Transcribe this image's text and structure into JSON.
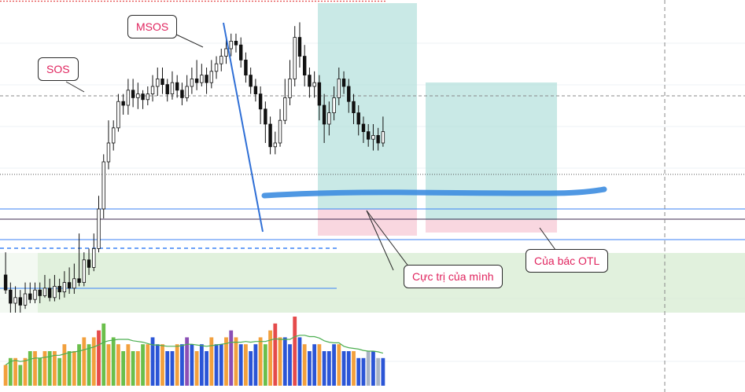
{
  "colors": {
    "bull": "#000000",
    "bear": "#000000",
    "target_zone": "#b2dfdb",
    "stop_zone": "#f8cdd8",
    "demand_zone": "#d7ecd2",
    "annotation_text": "#e0245e",
    "support_line": "#3b82f6",
    "vol_orange": "#f2a03d",
    "vol_green": "#6abf4b",
    "vol_blue": "#2b55d6",
    "vol_red": "#e54b4b",
    "vol_purple": "#8b4fb5",
    "vol_grey": "#a9b4c4",
    "vol_ma": "#4caf50",
    "hand_line": "#3d8de0"
  },
  "annotations": {
    "sos": "SOS",
    "msos": "MSOS",
    "cuc_tri": "Cực trị của mình",
    "cua_bac": "Của bác OTL"
  },
  "chart_data": {
    "type": "candlestick",
    "grid": true,
    "legend": "none",
    "candles": [
      [
        0.7,
        0.62,
        0.6,
        0.82
      ],
      [
        0.62,
        0.55,
        0.5,
        0.66
      ],
      [
        0.55,
        0.58,
        0.5,
        0.64
      ],
      [
        0.58,
        0.54,
        0.5,
        0.62
      ],
      [
        0.54,
        0.6,
        0.52,
        0.66
      ],
      [
        0.6,
        0.57,
        0.55,
        0.66
      ],
      [
        0.57,
        0.62,
        0.55,
        0.66
      ],
      [
        0.62,
        0.59,
        0.55,
        0.66
      ],
      [
        0.59,
        0.63,
        0.58,
        0.7
      ],
      [
        0.63,
        0.58,
        0.56,
        0.68
      ],
      [
        0.58,
        0.64,
        0.56,
        0.7
      ],
      [
        0.64,
        0.61,
        0.57,
        0.68
      ],
      [
        0.61,
        0.66,
        0.58,
        0.72
      ],
      [
        0.66,
        0.63,
        0.6,
        0.74
      ],
      [
        0.63,
        0.68,
        0.6,
        0.76
      ],
      [
        0.68,
        0.66,
        0.64,
        0.92
      ],
      [
        0.66,
        0.78,
        0.64,
        0.82
      ],
      [
        0.78,
        0.74,
        0.7,
        0.84
      ],
      [
        0.74,
        0.84,
        0.72,
        0.92
      ],
      [
        0.84,
        1.05,
        0.82,
        1.12
      ],
      [
        1.05,
        1.3,
        1.0,
        1.34
      ],
      [
        1.3,
        1.4,
        1.26,
        1.52
      ],
      [
        1.4,
        1.48,
        1.36,
        1.52
      ],
      [
        1.48,
        1.62,
        1.46,
        1.66
      ],
      [
        1.62,
        1.6,
        1.55,
        1.66
      ],
      [
        1.6,
        1.68,
        1.55,
        1.74
      ],
      [
        1.68,
        1.64,
        1.59,
        1.74
      ],
      [
        1.64,
        1.66,
        1.58,
        1.72
      ],
      [
        1.66,
        1.63,
        1.58,
        1.68
      ],
      [
        1.63,
        1.66,
        1.6,
        1.7
      ],
      [
        1.66,
        1.7,
        1.62,
        1.76
      ],
      [
        1.7,
        1.74,
        1.65,
        1.8
      ],
      [
        1.74,
        1.71,
        1.66,
        1.8
      ],
      [
        1.71,
        1.66,
        1.62,
        1.74
      ],
      [
        1.66,
        1.72,
        1.63,
        1.78
      ],
      [
        1.72,
        1.68,
        1.64,
        1.76
      ],
      [
        1.68,
        1.64,
        1.6,
        1.72
      ],
      [
        1.64,
        1.7,
        1.62,
        1.76
      ],
      [
        1.7,
        1.74,
        1.66,
        1.8
      ],
      [
        1.74,
        1.72,
        1.68,
        1.84
      ],
      [
        1.72,
        1.76,
        1.7,
        1.82
      ],
      [
        1.76,
        1.72,
        1.66,
        1.8
      ],
      [
        1.72,
        1.78,
        1.69,
        1.84
      ],
      [
        1.78,
        1.82,
        1.74,
        1.86
      ],
      [
        1.82,
        1.86,
        1.78,
        1.9
      ],
      [
        1.86,
        1.9,
        1.82,
        1.96
      ],
      [
        1.9,
        1.94,
        1.86,
        1.98
      ],
      [
        1.94,
        1.92,
        1.88,
        1.98
      ],
      [
        1.92,
        1.84,
        1.8,
        1.96
      ],
      [
        1.84,
        1.76,
        1.72,
        1.88
      ],
      [
        1.76,
        1.7,
        1.66,
        1.8
      ],
      [
        1.7,
        1.66,
        1.62,
        1.74
      ],
      [
        1.66,
        1.58,
        1.5,
        1.7
      ],
      [
        1.58,
        1.5,
        1.4,
        1.62
      ],
      [
        1.5,
        1.38,
        1.34,
        1.54
      ],
      [
        1.38,
        1.4,
        1.34,
        1.46
      ],
      [
        1.4,
        1.52,
        1.38,
        1.58
      ],
      [
        1.52,
        1.64,
        1.5,
        1.74
      ],
      [
        1.64,
        1.74,
        1.6,
        1.84
      ],
      [
        1.74,
        1.96,
        1.7,
        2.02
      ],
      [
        1.96,
        1.86,
        1.8,
        2.04
      ],
      [
        1.86,
        1.76,
        1.7,
        1.92
      ],
      [
        1.76,
        1.7,
        1.64,
        1.8
      ],
      [
        1.7,
        1.72,
        1.64,
        1.78
      ],
      [
        1.72,
        1.6,
        1.52,
        1.76
      ],
      [
        1.6,
        1.5,
        1.4,
        1.66
      ],
      [
        1.5,
        1.56,
        1.44,
        1.62
      ],
      [
        1.56,
        1.64,
        1.52,
        1.7
      ],
      [
        1.64,
        1.74,
        1.6,
        1.8
      ],
      [
        1.74,
        1.7,
        1.66,
        1.78
      ],
      [
        1.7,
        1.62,
        1.56,
        1.74
      ],
      [
        1.62,
        1.56,
        1.5,
        1.66
      ],
      [
        1.56,
        1.5,
        1.44,
        1.6
      ],
      [
        1.5,
        1.46,
        1.4,
        1.54
      ],
      [
        1.46,
        1.42,
        1.38,
        1.5
      ],
      [
        1.42,
        1.44,
        1.36,
        1.5
      ],
      [
        1.44,
        1.4,
        1.36,
        1.48
      ],
      [
        1.4,
        1.46,
        1.38,
        1.54
      ]
    ],
    "volume": [
      3,
      4,
      4,
      3,
      4,
      5,
      5,
      4,
      5,
      5,
      5,
      4,
      6,
      5,
      5,
      6,
      7,
      6,
      7,
      8,
      9,
      6,
      7,
      6,
      5,
      6,
      5,
      5,
      6,
      6,
      7,
      6,
      6,
      5,
      5,
      6,
      6,
      7,
      6,
      5,
      6,
      5,
      7,
      6,
      6,
      7,
      8,
      7,
      6,
      6,
      5,
      6,
      7,
      6,
      8,
      9,
      7,
      7,
      6,
      10,
      7,
      6,
      5,
      6,
      6,
      5,
      5,
      6,
      6,
      5,
      5,
      5,
      4,
      4,
      5,
      5,
      4,
      4
    ],
    "volume_colors": [
      "vol_orange",
      "vol_green",
      "vol_orange",
      "vol_green",
      "vol_orange",
      "vol_green",
      "vol_orange",
      "vol_green",
      "vol_orange",
      "vol_green",
      "vol_orange",
      "vol_green",
      "vol_orange",
      "vol_green",
      "vol_orange",
      "vol_green",
      "vol_orange",
      "vol_green",
      "vol_orange",
      "vol_red",
      "vol_green",
      "vol_orange",
      "vol_green",
      "vol_orange",
      "vol_green",
      "vol_orange",
      "vol_green",
      "vol_orange",
      "vol_green",
      "vol_orange",
      "vol_blue",
      "vol_blue",
      "vol_orange",
      "vol_blue",
      "vol_blue",
      "vol_orange",
      "vol_blue",
      "vol_purple",
      "vol_blue",
      "vol_orange",
      "vol_blue",
      "vol_blue",
      "vol_orange",
      "vol_blue",
      "vol_blue",
      "vol_orange",
      "vol_purple",
      "vol_orange",
      "vol_blue",
      "vol_orange",
      "vol_blue",
      "vol_blue",
      "vol_orange",
      "vol_green",
      "vol_orange",
      "vol_red",
      "vol_orange",
      "vol_blue",
      "vol_blue",
      "vol_red",
      "vol_blue",
      "vol_orange",
      "vol_blue",
      "vol_blue",
      "vol_orange",
      "vol_blue",
      "vol_blue",
      "vol_blue",
      "vol_orange",
      "vol_blue",
      "vol_blue",
      "vol_orange",
      "vol_blue",
      "vol_blue",
      "vol_grey",
      "vol_blue",
      "vol_grey",
      "vol_blue"
    ]
  }
}
